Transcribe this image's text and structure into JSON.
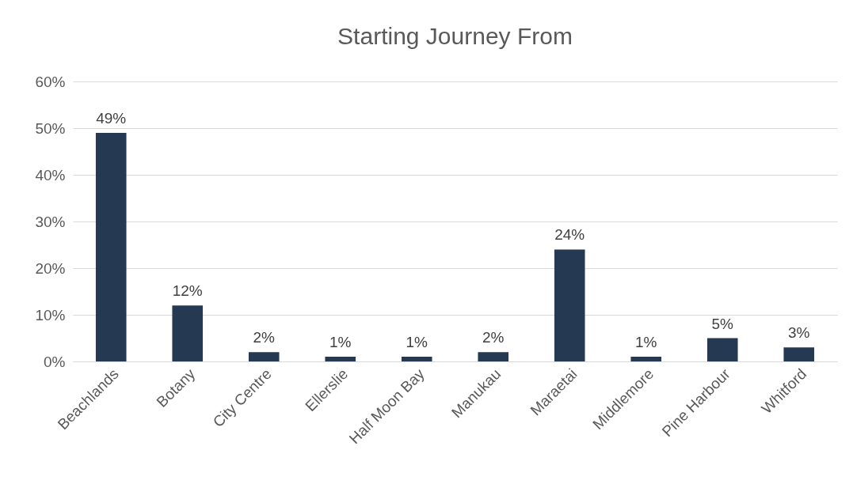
{
  "chart_data": {
    "type": "bar",
    "title": "Starting Journey From",
    "categories": [
      "Beachlands",
      "Botany",
      "City Centre",
      "Ellerslie",
      "Half Moon Bay",
      "Manukau",
      "Maraetai",
      "Middlemore",
      "Pine Harbour",
      "Whitford"
    ],
    "values": [
      49,
      12,
      2,
      1,
      1,
      2,
      24,
      1,
      5,
      3
    ],
    "value_labels": [
      "49%",
      "12%",
      "2%",
      "1%",
      "1%",
      "2%",
      "24%",
      "1%",
      "5%",
      "3%"
    ],
    "color": "#253a52",
    "ylim": [
      0,
      60
    ],
    "yticks": [
      {
        "value": 0,
        "label": "0%"
      },
      {
        "value": 10,
        "label": "10%"
      },
      {
        "value": 20,
        "label": "20%"
      },
      {
        "value": 30,
        "label": "30%"
      },
      {
        "value": 40,
        "label": "40%"
      },
      {
        "value": 50,
        "label": "50%"
      },
      {
        "value": 60,
        "label": "60%"
      }
    ],
    "grid": "y"
  }
}
